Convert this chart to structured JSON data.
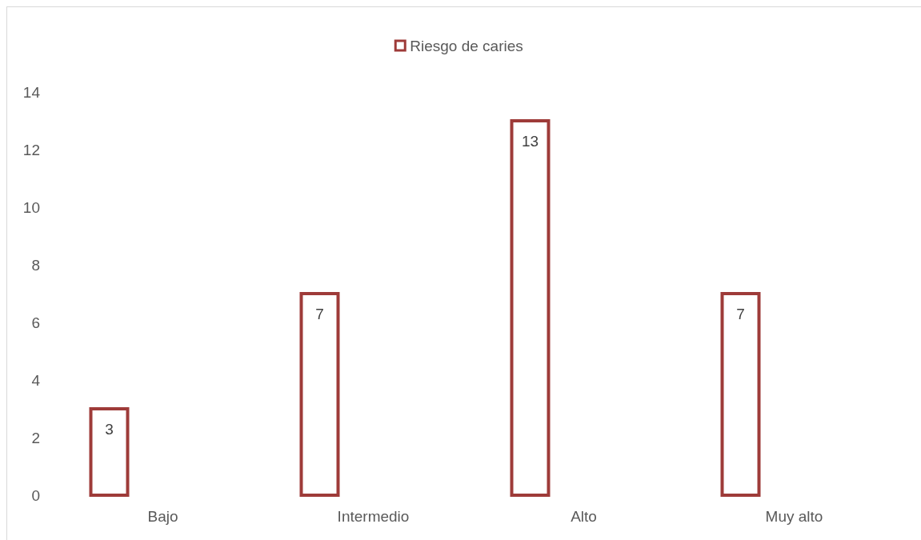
{
  "chart_data": {
    "type": "bar",
    "categories": [
      "Bajo",
      "Intermedio",
      "Alto",
      "Muy alto"
    ],
    "series": [
      {
        "name": "Riesgo de caries",
        "color": "#9e3b39",
        "values": [
          3,
          7,
          13,
          7
        ]
      }
    ],
    "ylim": [
      0,
      14
    ],
    "yticks": [
      0,
      2,
      4,
      6,
      8,
      10,
      12,
      14
    ],
    "data_labels": true,
    "legend": "top",
    "grid": false
  }
}
